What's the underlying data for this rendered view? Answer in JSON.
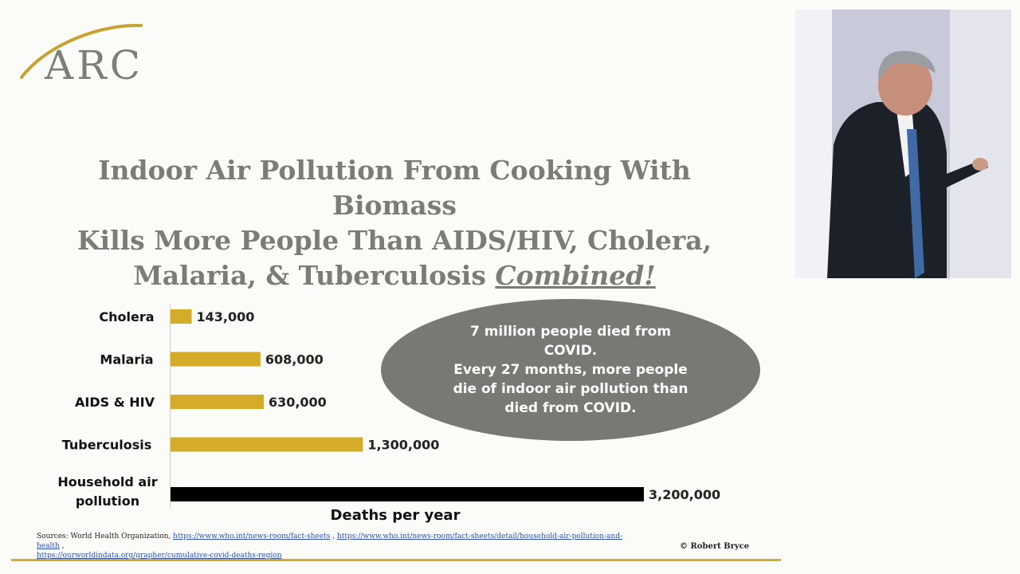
{
  "logo": {
    "text": "ARC"
  },
  "title": {
    "line1": "Indoor Air Pollution From Cooking With Biomass",
    "line2": "Kills More People Than AIDS/HIV, Cholera,",
    "line3_prefix": "Malaria, & Tuberculosis ",
    "line3_emphasis": "Combined!"
  },
  "callout": {
    "line1": "7 million people died from COVID.",
    "line2": "Every 27 months, more people die of indoor air pollution than died from COVID."
  },
  "sources": {
    "prefix": "Sources: World Health Organization,",
    "link1": "https://www.who.int/news-room/fact-sheets",
    "link2": "https://www.who.int/news-room/fact-sheets/detail/household-air-pollution-and-health",
    "link3": "https://ourworldindata.org/grapher/cumulative-covid-deaths-region"
  },
  "copyright": "© Robert Bryce",
  "colors": {
    "bar": "#d4ac2a",
    "highlight_bar": "#000000",
    "callout": "#777a73",
    "title": "#7a7c76"
  },
  "chart_data": {
    "type": "bar",
    "orientation": "horizontal",
    "categories": [
      "Cholera",
      "Malaria",
      "AIDS & HIV",
      "Tuberculosis",
      "Household air pollution"
    ],
    "values": [
      143000,
      608000,
      630000,
      1300000,
      3200000
    ],
    "value_labels": [
      "143,000",
      "608,000",
      "630,000",
      "1,300,000",
      "3,200,000"
    ],
    "xlabel": "Deaths per year",
    "ylabel": "",
    "xlim": [
      0,
      3200000
    ],
    "grid": false,
    "legend": "none"
  }
}
